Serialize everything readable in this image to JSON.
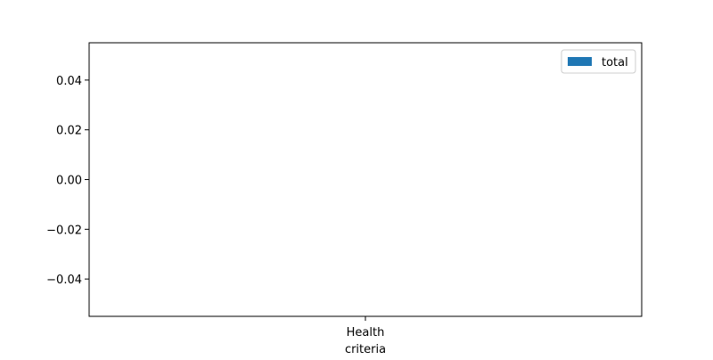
{
  "chart_data": {
    "type": "bar",
    "title": "",
    "xlabel": "criteria",
    "ylabel": "",
    "categories": [
      "Health"
    ],
    "series": [
      {
        "name": "total",
        "values": [
          0
        ],
        "color": "#1f77b4"
      }
    ],
    "ylim": [
      -0.055,
      0.055
    ],
    "yticks": [
      -0.04,
      -0.02,
      0.0,
      0.02,
      0.04
    ],
    "ytick_labels": [
      "−0.04",
      "−0.02",
      "0.00",
      "0.02",
      "0.04"
    ],
    "grid": false,
    "legend_position": "top-right"
  }
}
